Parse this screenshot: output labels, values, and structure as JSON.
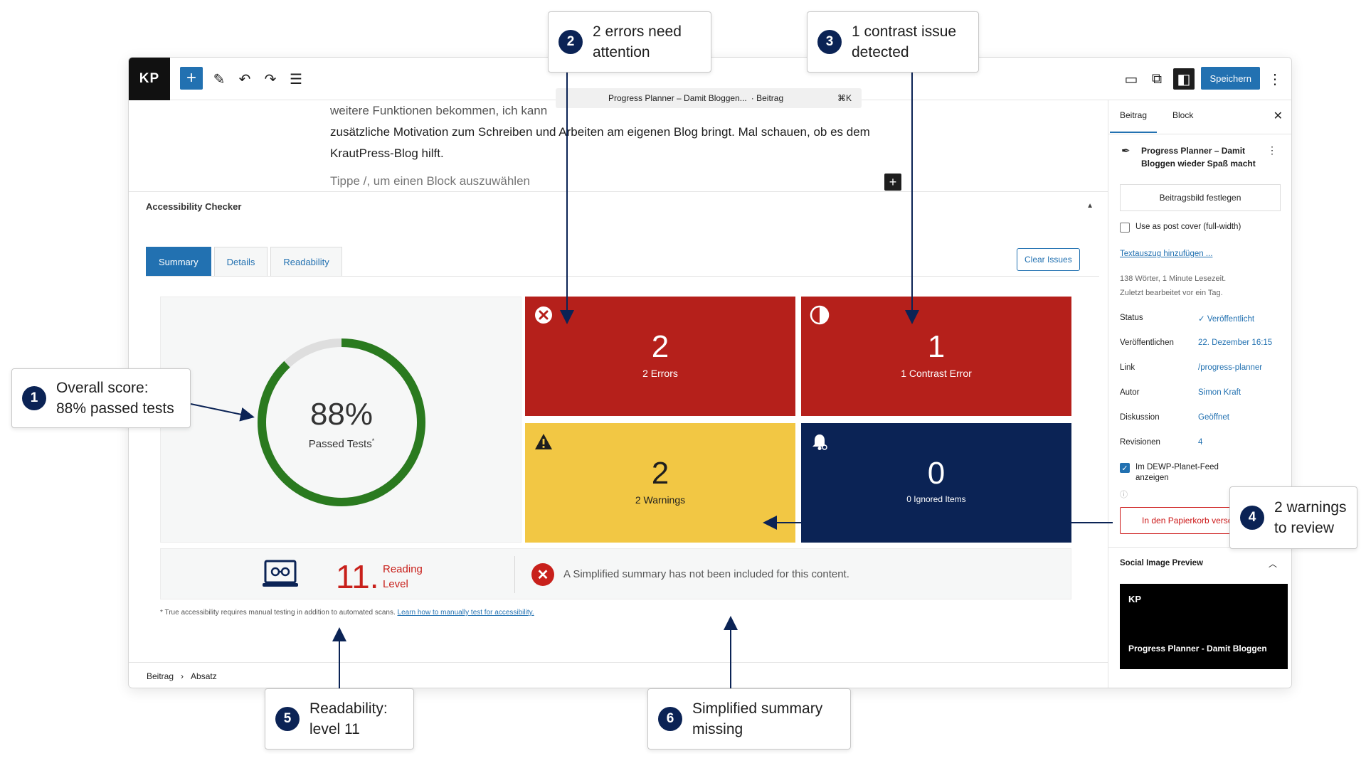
{
  "editor": {
    "logo": "KP",
    "doc_title": "Progress Planner – Damit Bloggen...",
    "doc_type": "· Beitrag",
    "shortcut": "⌘K",
    "save_label": "Speichern"
  },
  "content": {
    "line1": "weitere Funktionen bekommen, ich kann",
    "line2": "zusätzliche Motivation zum Schreiben und Arbeiten am eigenen Blog bringt. Mal schauen, ob es dem",
    "line3": "KrautPress-Blog hilft.",
    "block_placeholder": "Tippe /, um einen Block auszuwählen"
  },
  "checker": {
    "title": "Accessibility Checker",
    "tabs": [
      "Summary",
      "Details",
      "Readability"
    ],
    "clear_label": "Clear Issues",
    "score": {
      "value": "88%",
      "label": "Passed Tests",
      "marker": "*",
      "fraction": 0.88
    },
    "tiles": {
      "errors": {
        "count": "2",
        "label": "2 Errors"
      },
      "contrast": {
        "count": "1",
        "label": "1 Contrast Error"
      },
      "warnings": {
        "count": "2",
        "label": "2 Warnings"
      },
      "ignored": {
        "count": "0",
        "label": "0 Ignored Items"
      }
    },
    "reading_level": {
      "value": "11.",
      "label_line1": "Reading",
      "label_line2": "Level"
    },
    "summary_text": "A Simplified summary has not been included for this content.",
    "footnote": "* True accessibility requires manual testing in addition to automated scans.",
    "footnote_link": "Learn how to manually test for accessibility."
  },
  "breadcrumb": [
    "Beitrag",
    "Absatz"
  ],
  "sidebar": {
    "tabs": [
      "Beitrag",
      "Block"
    ],
    "post_title": "Progress Planner – Damit Bloggen wieder Spaß macht",
    "featured_image_label": "Beitragsbild festlegen",
    "cover_label": "Use as post cover (full-width)",
    "excerpt_link": "Textauszug hinzufügen ...",
    "meta_line1": "138 Wörter, 1 Minute Lesezeit.",
    "meta_line2": "Zuletzt bearbeitet vor ein Tag.",
    "fields": [
      {
        "key": "Status",
        "value": "Veröffentlicht"
      },
      {
        "key": "Veröffentlichen",
        "value": "22. Dezember 16:15"
      },
      {
        "key": "Link",
        "value": "/progress-planner"
      },
      {
        "key": "Autor",
        "value": "Simon Kraft"
      },
      {
        "key": "Diskussion",
        "value": "Geöffnet"
      },
      {
        "key": "Revisionen",
        "value": "4"
      }
    ],
    "feed_label": "Im DEWP-Planet-Feed anzeigen",
    "trash_label": "In den Papierkorb verschieben",
    "social_title": "Social Image Preview",
    "preview_logo": "KP",
    "preview_title": "Progress Planner - Damit Bloggen"
  },
  "callouts": [
    {
      "num": "1",
      "line1": "Overall score:",
      "line2": "88% passed tests"
    },
    {
      "num": "2",
      "line1": "2 errors need",
      "line2": "attention"
    },
    {
      "num": "3",
      "line1": "1 contrast issue",
      "line2": "detected"
    },
    {
      "num": "4",
      "line1": "2 warnings",
      "line2": "to review"
    },
    {
      "num": "5",
      "line1": "Readability:",
      "line2": "level 11"
    },
    {
      "num": "6",
      "line1": "Simplified summary",
      "line2": "missing"
    }
  ],
  "colors": {
    "error": "#b5201b",
    "warning": "#f2c744",
    "ignored": "#0b2355",
    "pass": "#2a7a1f",
    "accent": "#2271b1"
  }
}
